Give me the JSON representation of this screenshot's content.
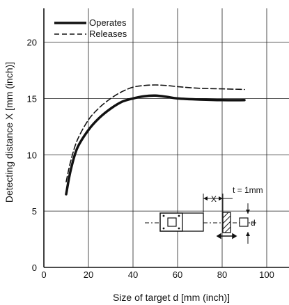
{
  "chart_data": {
    "type": "line",
    "xlabel": "Size of target d [mm (inch)]",
    "ylabel": "Detecting distance X [mm (inch)]",
    "xlim": [
      0,
      110
    ],
    "ylim": [
      0,
      23
    ],
    "x_ticks": [
      "0",
      "20",
      "40",
      "60",
      "80",
      "100"
    ],
    "y_ticks": [
      "0",
      "5",
      "10",
      "15",
      "20"
    ],
    "grid": true,
    "legend_position": "top-left",
    "series": [
      {
        "name": "Operates",
        "style": "solid",
        "color": "#111111",
        "x": [
          10,
          12,
          15,
          20,
          25,
          30,
          35,
          40,
          45,
          50,
          55,
          60,
          70,
          80,
          90
        ],
        "y": [
          6.5,
          8.6,
          10.6,
          12.2,
          13.3,
          14.1,
          14.7,
          15.0,
          15.2,
          15.25,
          15.15,
          15.0,
          14.9,
          14.85,
          14.85
        ]
      },
      {
        "name": "Releases",
        "style": "dashed",
        "color": "#111111",
        "x": [
          10,
          12,
          15,
          20,
          25,
          30,
          35,
          40,
          45,
          50,
          55,
          60,
          70,
          80,
          90
        ],
        "y": [
          7.6,
          9.4,
          11.3,
          13.1,
          14.2,
          15.0,
          15.6,
          16.0,
          16.15,
          16.2,
          16.15,
          16.05,
          15.9,
          15.85,
          15.8
        ]
      }
    ],
    "annotations": {
      "x_label": "X",
      "thickness": "t = 1mm",
      "d_label": "d"
    }
  }
}
